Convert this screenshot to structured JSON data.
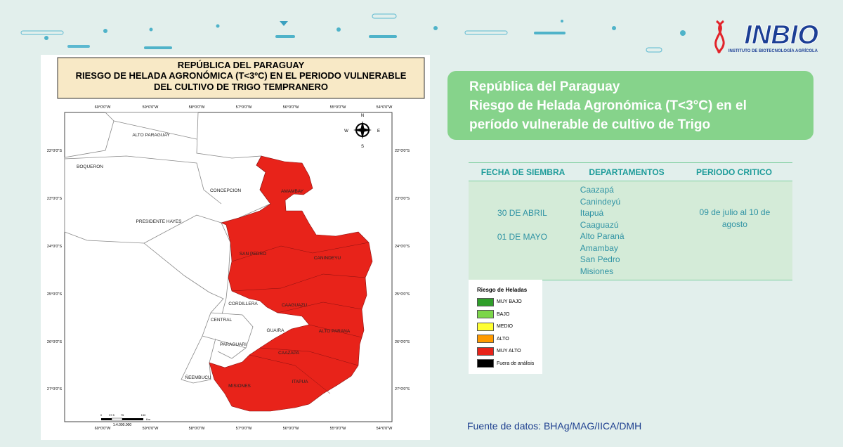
{
  "header": {
    "logo": "INBIO",
    "logo_subtitle": "INSTITUTO DE BIOTECNOLOGÍA AGRÍCOLA"
  },
  "map": {
    "title": [
      "REPÚBLICA DEL PARAGUAY",
      "RIESGO DE HELADA AGRONÓMICA (T<3ºC) EN EL PERIODO VULNERABLE",
      "DEL CULTIVO DE TRIGO TEMPRANERO"
    ],
    "lon_labels": [
      "60°0'0\"W",
      "59°0'0\"W",
      "58°0'0\"W",
      "57°0'0\"W",
      "56°0'0\"W",
      "55°0'0\"W",
      "54°0'0\"W"
    ],
    "lat_labels": [
      "22°0'0\"S",
      "23°0'0\"S",
      "24°0'0\"S",
      "25°0'0\"S",
      "26°0'0\"S",
      "27°0'0\"S"
    ],
    "departments": [
      "ALTO PARAGUAY",
      "BOQUERON",
      "CONCEPCION",
      "AMAMBAY",
      "PRESIDENTE HAYES",
      "SAN PEDRO",
      "CANINDEYU",
      "CORDILLERA",
      "CAAGUAZU",
      "CENTRAL",
      "GUAIRA",
      "ALTO PARANA",
      "PARAGUARI",
      "CAAZAPA",
      "ÑEEMBUCU",
      "MISIONES",
      "ITAPUA"
    ],
    "compass": [
      "N",
      "E",
      "S",
      "W"
    ],
    "scale": "1:4.000.000",
    "scale_ticks": [
      "0",
      "37.5",
      "75",
      "150"
    ],
    "scale_unit": "Km"
  },
  "summary": {
    "title_lines": [
      "República del Paraguay",
      "Riesgo de Helada Agronómica (T<3°C) en el",
      "período vulnerable de cultivo de Trigo"
    ]
  },
  "table": {
    "headers": [
      "FECHA DE SIEMBRA",
      "DEPARTAMENTOS",
      "PERIODO CRITICO"
    ],
    "fechas": [
      "30 DE ABRIL",
      "01 DE MAYO"
    ],
    "departamentos": [
      "Caazapá",
      "Canindeyú",
      "Itapuá",
      "Caaguazú",
      "Alto Paraná",
      "Amambay",
      "San Pedro",
      "Misiones"
    ],
    "periodo": "09 de julio al 10 de agosto"
  },
  "legend": {
    "title": "Riesgo de Heladas",
    "items": [
      {
        "label": "MUY BAJO",
        "color": "#2f9e2a"
      },
      {
        "label": "BAJO",
        "color": "#7cd64a"
      },
      {
        "label": "MEDIO",
        "color": "#ffff33"
      },
      {
        "label": "ALTO",
        "color": "#ff9a00"
      },
      {
        "label": "MUY ALTO",
        "color": "#e8231a"
      },
      {
        "label": "Fuera de análisis",
        "color": "#000000"
      }
    ]
  },
  "source": "Fuente de datos: BHAg/MAG/IICA/DMH"
}
